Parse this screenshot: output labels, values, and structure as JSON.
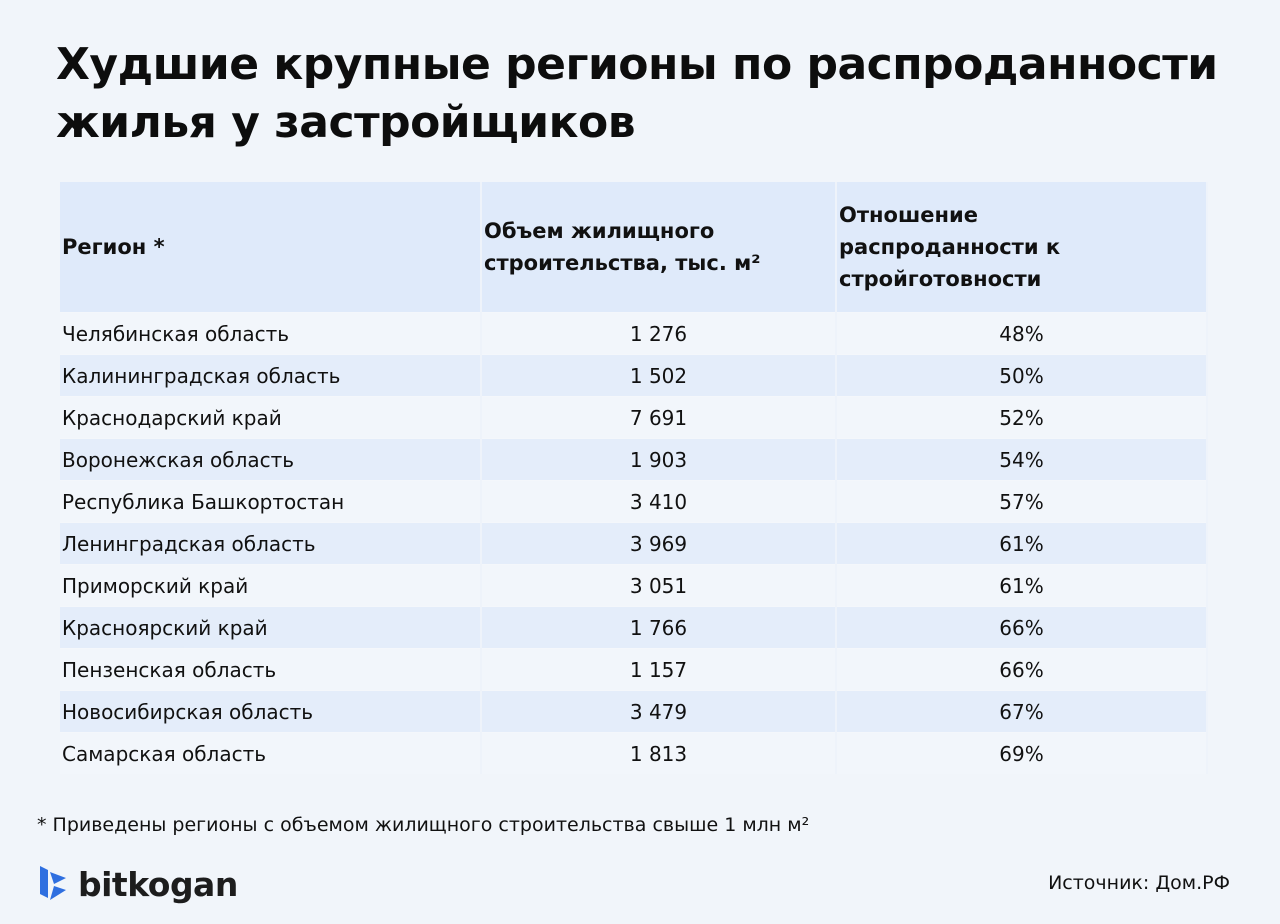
{
  "title": "Худшие крупные регионы по распроданности жилья у застройщиков",
  "table": {
    "headers": [
      "Регион *",
      "Объем жилищного строительства, тыс. м²",
      "Отношение распроданности к стройготовности"
    ],
    "rows": [
      [
        "Челябинская область",
        "1 276",
        "48%"
      ],
      [
        "Калининградская область",
        "1 502",
        "50%"
      ],
      [
        "Краснодарский край",
        "7 691",
        "52%"
      ],
      [
        "Воронежская область",
        "1 903",
        "54%"
      ],
      [
        "Республика Башкортостан",
        "3 410",
        "57%"
      ],
      [
        "Ленинградская область",
        "3 969",
        "61%"
      ],
      [
        "Приморский край",
        "3 051",
        "61%"
      ],
      [
        "Красноярский край",
        "1 766",
        "66%"
      ],
      [
        "Пензенская область",
        "1 157",
        "66%"
      ],
      [
        "Новосибирская область",
        "3 479",
        "67%"
      ],
      [
        "Самарская область",
        "1 813",
        "69%"
      ]
    ]
  },
  "footnote": "* Приведены регионы с объемом жилищного строительства свыше 1 млн м²",
  "source": "Источник: Дом.РФ",
  "logo": {
    "text": "bitkogan",
    "color": "#2f6fe0"
  }
}
